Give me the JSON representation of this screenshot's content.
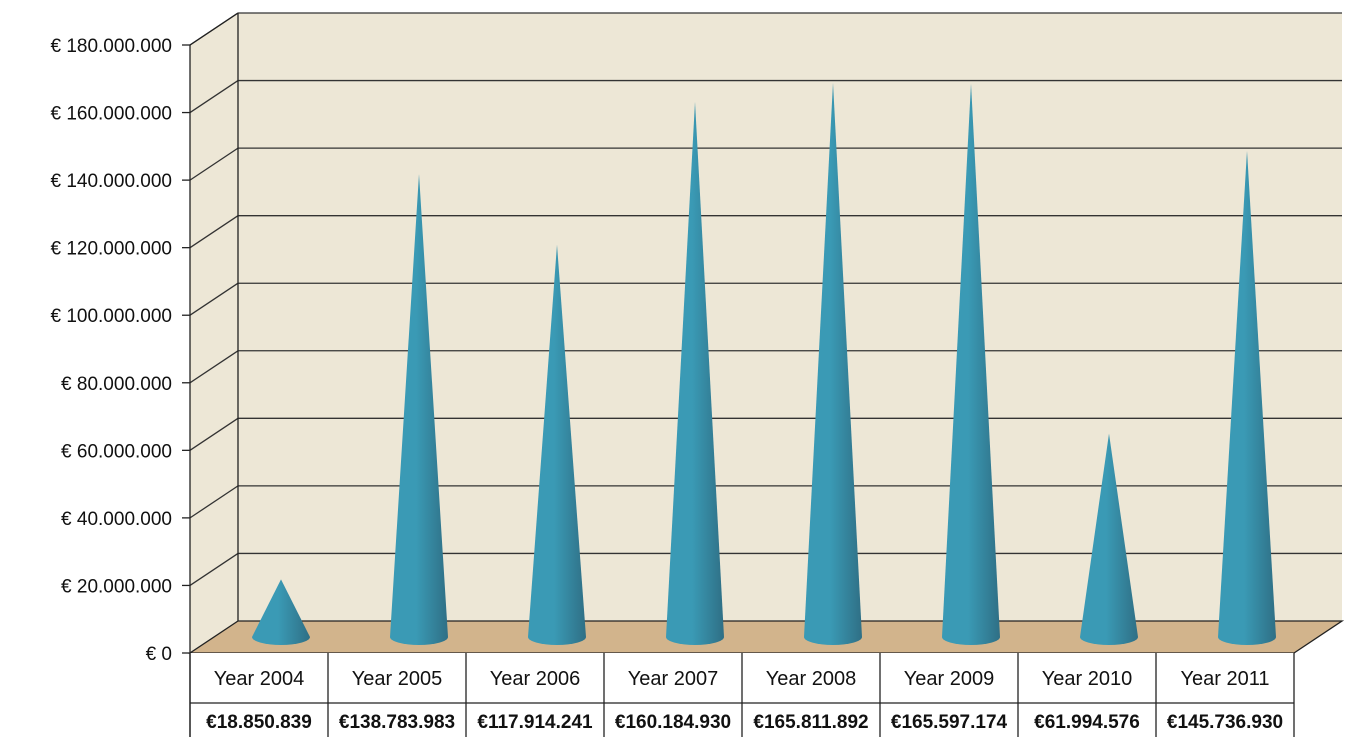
{
  "chart_data": {
    "type": "bar",
    "style": "3d-cone",
    "title": "",
    "xlabel": "",
    "ylabel": "",
    "categories": [
      "Year 2004",
      "Year 2005",
      "Year 2006",
      "Year 2007",
      "Year 2008",
      "Year 2009",
      "Year 2010",
      "Year 2011"
    ],
    "values": [
      18850839,
      138783983,
      117914241,
      160184930,
      165811892,
      165597174,
      61994576,
      145736930
    ],
    "value_labels": [
      "€18.850.839",
      "€138.783.983",
      "€117.914.241",
      "€160.184.930",
      "€165.811.892",
      "€165.597.174",
      "€61.994.576",
      "€145.736.930"
    ],
    "ylim": [
      0,
      180000000
    ],
    "y_ticks": [
      0,
      20000000,
      40000000,
      60000000,
      80000000,
      100000000,
      120000000,
      140000000,
      160000000,
      180000000
    ],
    "y_tick_labels": [
      "€ 0",
      "€ 20.000.000",
      "€ 40.000.000",
      "€ 60.000.000",
      "€ 80.000.000",
      "€ 100.000.000",
      "€ 120.000.000",
      "€ 140.000.000",
      "€ 160.000.000",
      "€ 180.000.000"
    ],
    "grid": true,
    "data_table": true,
    "colors": {
      "wall": "#ede7d6",
      "floor": "#d2b48c",
      "cone_light": "#3a9ab5",
      "cone_dark": "#2f6f85",
      "gridline": "#333333"
    }
  }
}
